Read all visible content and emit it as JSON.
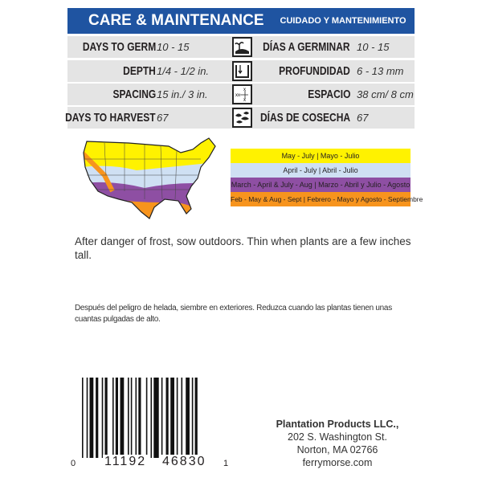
{
  "header": {
    "title": "CARE & MAINTENANCE",
    "title_es": "CUIDADO Y MANTENIMIENTO",
    "color": "#1f54a1"
  },
  "rows": [
    {
      "label": "DAYS TO GERM",
      "value": "10 - 15",
      "icon": "germination-icon",
      "label_es": "DÍAS A GERMINAR",
      "value_es": "10 - 15"
    },
    {
      "label": "DEPTH",
      "value": "1/4 - 1/2 in.",
      "icon": "depth-icon",
      "label_es": "PROFUNDIDAD",
      "value_es": "6 - 13 mm"
    },
    {
      "label": "SPACING",
      "value": "15 in./ 3 in.",
      "icon": "spacing-icon",
      "label_es": "ESPACIO",
      "value_es": "38 cm/ 8 cm"
    },
    {
      "label": "DAYS TO HARVEST",
      "value": "67",
      "icon": "harvest-icon",
      "label_es": "DÍAS DE COSECHA",
      "value_es": "67"
    }
  ],
  "legend": [
    {
      "text": "May - July | Mayo - Julio",
      "color": "#fff200"
    },
    {
      "text": "April - July | Abril - Julio",
      "color": "#cfe0f3"
    },
    {
      "text": "March - April & July - Aug | Marzo - Abril y Julio - Agosto",
      "color": "#8e4fa3"
    },
    {
      "text": "Feb - May & Aug - Sept | Febrero - Mayo y Agosto - Septiembre",
      "color": "#f7941d"
    }
  ],
  "instructions": "After danger of frost, sow outdoors. Thin when plants are a few inches tall.",
  "instructions_es": "Después del peligro de helada, siembre en exteriores. Reduzca cuando las plantas tienen unas cuantas pulgadas de alto.",
  "barcode": {
    "lead": "0",
    "left": "11192",
    "right": "46830",
    "check": "1"
  },
  "company": {
    "name": "Plantation Products LLC.,",
    "address": "202 S. Washington St.",
    "city": "Norton, MA 02766",
    "website": "ferrymorse.com"
  }
}
